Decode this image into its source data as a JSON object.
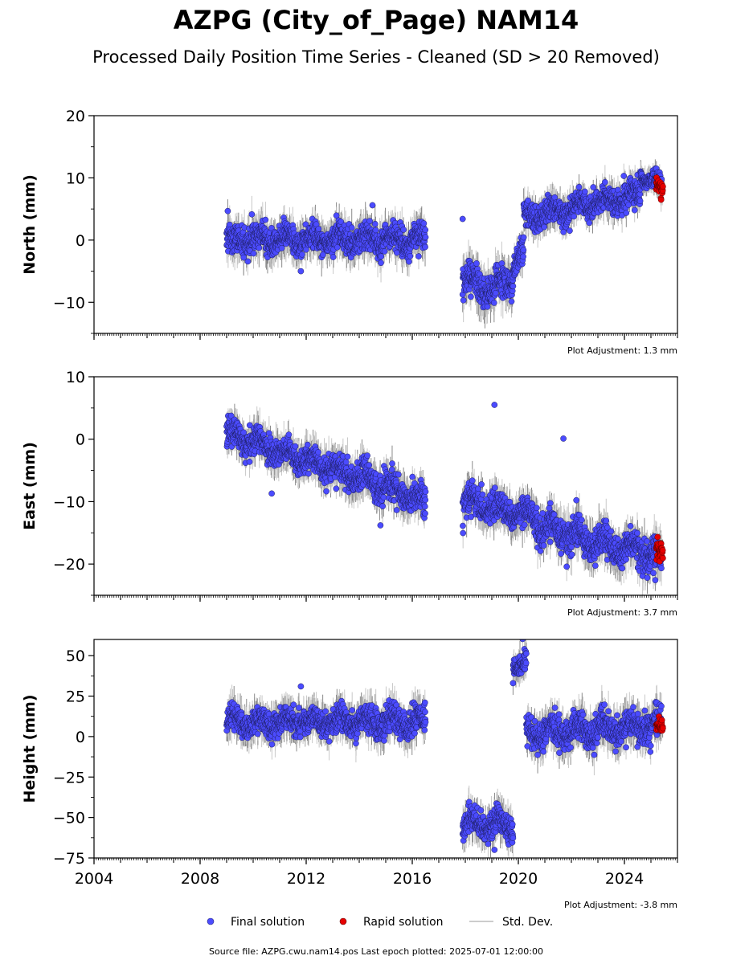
{
  "chart_data": {
    "type": "scatter",
    "title": "AZPG (City_of_Page) NAM14",
    "subtitle": "Processed Daily Position Time Series - Cleaned (SD > 20 Removed)",
    "x": {
      "range": [
        2004,
        2026
      ],
      "tick_values": [
        2004,
        2008,
        2012,
        2016,
        2020,
        2024
      ],
      "tick_labels": [
        "2004",
        "2008",
        "2012",
        "2016",
        "2020",
        "2024"
      ]
    },
    "panels": [
      {
        "ylabel": "North (mm)",
        "ylim": [
          -15,
          20
        ],
        "yticks": [
          -10,
          0,
          10,
          20
        ],
        "ytick_labels": [
          "−10",
          "0",
          "10",
          "20"
        ],
        "adjustment": "Plot Adjustment: 1.3 mm",
        "segments": [
          {
            "x": [
              2009.0,
              2016.5
            ],
            "y": [
              0.0,
              0.0
            ],
            "noise": 1.6
          },
          {
            "x": [
              2017.9,
              2019.0
            ],
            "y": [
              -6.0,
              -8.0
            ],
            "noise": 1.8
          },
          {
            "x": [
              2019.0,
              2019.8
            ],
            "y": [
              -8.0,
              -6.0
            ],
            "noise": 1.8
          },
          {
            "x": [
              2019.8,
              2020.2
            ],
            "y": [
              -4.0,
              -2.0
            ],
            "noise": 1.2
          },
          {
            "x": [
              2020.2,
              2021.3
            ],
            "y": [
              3.5,
              4.5
            ],
            "noise": 1.4
          },
          {
            "x": [
              2021.3,
              2024.6
            ],
            "y": [
              4.5,
              7.5
            ],
            "noise": 1.4
          },
          {
            "x": [
              2024.6,
              2025.4
            ],
            "y": [
              10.5,
              9.0
            ],
            "noise": 1.0
          }
        ],
        "rapid": {
          "x": [
            2025.2,
            2025.45
          ],
          "y": [
            8.0,
            8.0
          ],
          "noise": 1.0
        },
        "outliers": [
          [
            2014.5,
            5.6
          ],
          [
            2017.9,
            3.4
          ],
          [
            2011.8,
            -5.0
          ],
          [
            2021.7,
            1.3
          ]
        ]
      },
      {
        "ylabel": "East (mm)",
        "ylim": [
          -25,
          10
        ],
        "yticks": [
          -20,
          -10,
          0,
          10
        ],
        "ytick_labels": [
          "−20",
          "−10",
          "0",
          "10"
        ],
        "adjustment": "Plot Adjustment: 3.7 mm",
        "segments": [
          {
            "x": [
              2009.0,
              2016.5
            ],
            "y": [
              1.0,
              -10.0
            ],
            "noise": 1.6
          },
          {
            "x": [
              2017.9,
              2020.7
            ],
            "y": [
              -10.0,
              -12.5
            ],
            "noise": 1.6
          },
          {
            "x": [
              2020.7,
              2025.4
            ],
            "y": [
              -14.0,
              -19.0
            ],
            "noise": 1.8
          }
        ],
        "rapid": {
          "x": [
            2025.2,
            2025.45
          ],
          "y": [
            -18.5,
            -18.5
          ],
          "noise": 1.2
        },
        "outliers": [
          [
            2019.1,
            5.5
          ],
          [
            2021.7,
            0.1
          ],
          [
            2014.8,
            -13.8
          ],
          [
            2010.7,
            -8.7
          ]
        ]
      },
      {
        "ylabel": "Height (mm)",
        "ylim": [
          -75,
          60
        ],
        "yticks": [
          -75,
          -50,
          -25,
          0,
          25,
          50
        ],
        "ytick_labels": [
          "−75",
          "−50",
          "−25",
          "0",
          "25",
          "50"
        ],
        "adjustment": "Plot Adjustment: -3.8 mm",
        "segments": [
          {
            "x": [
              2009.0,
              2016.5
            ],
            "y": [
              9.0,
              9.0
            ],
            "noise": 6.0
          },
          {
            "x": [
              2017.9,
              2019.8
            ],
            "y": [
              -54.0,
              -54.0
            ],
            "noise": 6.0
          },
          {
            "x": [
              2019.8,
              2020.3
            ],
            "y": [
              44.0,
              44.0
            ],
            "noise": 5.0
          },
          {
            "x": [
              2020.3,
              2025.4
            ],
            "y": [
              2.0,
              7.0
            ],
            "noise": 6.5
          }
        ],
        "rapid": {
          "x": [
            2025.2,
            2025.45
          ],
          "y": [
            5.0,
            5.0
          ],
          "noise": 3.5
        },
        "outliers": [
          [
            2011.8,
            31.0
          ],
          [
            2019.1,
            -70.0
          ]
        ]
      }
    ],
    "legend": {
      "position": "bottom-center",
      "items": [
        {
          "label": "Final solution",
          "color": "#4b4bff"
        },
        {
          "label": "Rapid solution",
          "color": "#e60000"
        },
        {
          "label": "Std. Dev.",
          "color": "#cccccc"
        }
      ]
    },
    "footer": "Source file: AZPG.cwu.nam14.pos  Last epoch plotted: 2025-07-01 12:00:00",
    "colors": {
      "final": "#4b4bff",
      "rapid": "#e60000",
      "stddev": "#bfbfbf"
    }
  }
}
